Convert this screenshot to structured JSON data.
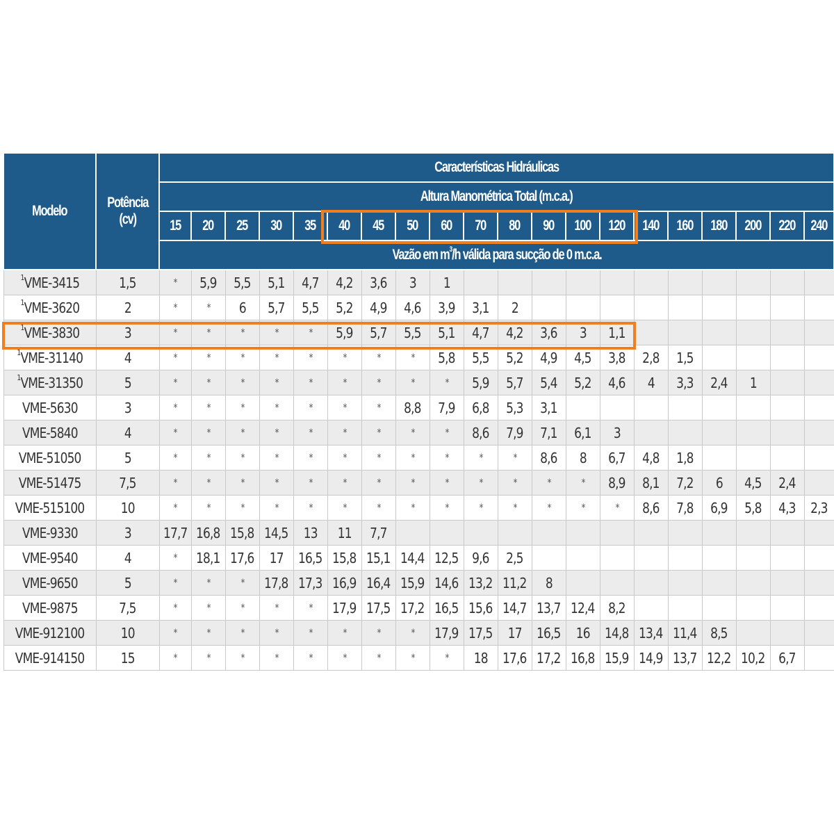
{
  "headers": {
    "modelo": "Modelo",
    "potencia_line1": "Potência",
    "potencia_line2": "(cv)",
    "caracteristicas": "Características Hidráulicas",
    "altura": "Altura Manométrica Total (m.c.a.)",
    "vazao_pre": "Vazão em m",
    "vazao_sup": "3",
    "vazao_post": "/h válida para sucção de 0 m.c.a.",
    "heights": [
      "15",
      "20",
      "25",
      "30",
      "35",
      "40",
      "45",
      "50",
      "60",
      "70",
      "80",
      "90",
      "100",
      "120",
      "140",
      "160",
      "180",
      "200",
      "220",
      "240"
    ]
  },
  "colors": {
    "header_bg": "#1f5b8a",
    "highlight": "#f07f21",
    "row_alt": "#ececec"
  },
  "rows": [
    {
      "mark": "1",
      "model": "VME-3415",
      "power": "1,5",
      "values": [
        "*",
        "5,9",
        "5,5",
        "5,1",
        "4,7",
        "4,2",
        "3,6",
        "3",
        "1",
        "",
        "",
        "",
        "",
        "",
        "",
        "",
        "",
        "",
        "",
        ""
      ]
    },
    {
      "mark": "1",
      "model": "VME-3620",
      "power": "2",
      "values": [
        "*",
        "*",
        "6",
        "5,7",
        "5,5",
        "5,2",
        "4,9",
        "4,6",
        "3,9",
        "3,1",
        "2",
        "",
        "",
        "",
        "",
        "",
        "",
        "",
        "",
        ""
      ]
    },
    {
      "mark": "1",
      "model": "VME-3830",
      "power": "3",
      "values": [
        "*",
        "*",
        "*",
        "*",
        "*",
        "5,9",
        "5,7",
        "5,5",
        "5,1",
        "4,7",
        "4,2",
        "3,6",
        "3",
        "1,1",
        "",
        "",
        "",
        "",
        "",
        ""
      ]
    },
    {
      "mark": "1",
      "model": "VME-31140",
      "power": "4",
      "values": [
        "*",
        "*",
        "*",
        "*",
        "*",
        "*",
        "*",
        "*",
        "5,8",
        "5,5",
        "5,2",
        "4,9",
        "4,5",
        "3,8",
        "2,8",
        "1,5",
        "",
        "",
        "",
        ""
      ]
    },
    {
      "mark": "1",
      "model": "VME-31350",
      "power": "5",
      "values": [
        "*",
        "*",
        "*",
        "*",
        "*",
        "*",
        "*",
        "*",
        "*",
        "5,9",
        "5,7",
        "5,4",
        "5,2",
        "4,6",
        "4",
        "3,3",
        "2,4",
        "1",
        "",
        ""
      ]
    },
    {
      "mark": "",
      "model": "VME-5630",
      "power": "3",
      "values": [
        "*",
        "*",
        "*",
        "*",
        "*",
        "*",
        "*",
        "8,8",
        "7,9",
        "6,8",
        "5,3",
        "3,1",
        "",
        "",
        "",
        "",
        "",
        "",
        "",
        ""
      ]
    },
    {
      "mark": "",
      "model": "VME-5840",
      "power": "4",
      "values": [
        "*",
        "*",
        "*",
        "*",
        "*",
        "*",
        "*",
        "*",
        "*",
        "8,6",
        "7,9",
        "7,1",
        "6,1",
        "3",
        "",
        "",
        "",
        "",
        "",
        ""
      ]
    },
    {
      "mark": "",
      "model": "VME-51050",
      "power": "5",
      "values": [
        "*",
        "*",
        "*",
        "*",
        "*",
        "*",
        "*",
        "*",
        "*",
        "*",
        "*",
        "8,6",
        "8",
        "6,7",
        "4,8",
        "1,8",
        "",
        "",
        "",
        ""
      ]
    },
    {
      "mark": "",
      "model": "VME-51475",
      "power": "7,5",
      "values": [
        "*",
        "*",
        "*",
        "*",
        "*",
        "*",
        "*",
        "*",
        "*",
        "*",
        "*",
        "*",
        "*",
        "8,9",
        "8,1",
        "7,2",
        "6",
        "4,5",
        "2,4",
        ""
      ]
    },
    {
      "mark": "",
      "model": "VME-515100",
      "power": "10",
      "values": [
        "*",
        "*",
        "*",
        "*",
        "*",
        "*",
        "*",
        "*",
        "*",
        "*",
        "*",
        "*",
        "*",
        "*",
        "8,6",
        "7,8",
        "6,9",
        "5,8",
        "4,3",
        "2,3"
      ]
    },
    {
      "mark": "",
      "model": "VME-9330",
      "power": "3",
      "values": [
        "17,7",
        "16,8",
        "15,8",
        "14,5",
        "13",
        "11",
        "7,7",
        "",
        "",
        "",
        "",
        "",
        "",
        "",
        "",
        "",
        "",
        "",
        "",
        ""
      ]
    },
    {
      "mark": "",
      "model": "VME-9540",
      "power": "4",
      "values": [
        "*",
        "18,1",
        "17,6",
        "17",
        "16,5",
        "15,8",
        "15,1",
        "14,4",
        "12,5",
        "9,6",
        "2,5",
        "",
        "",
        "",
        "",
        "",
        "",
        "",
        "",
        ""
      ]
    },
    {
      "mark": "",
      "model": "VME-9650",
      "power": "5",
      "values": [
        "*",
        "*",
        "*",
        "17,8",
        "17,3",
        "16,9",
        "16,4",
        "15,9",
        "14,6",
        "13,2",
        "11,2",
        "8",
        "",
        "",
        "",
        "",
        "",
        "",
        "",
        ""
      ]
    },
    {
      "mark": "",
      "model": "VME-9875",
      "power": "7,5",
      "values": [
        "*",
        "*",
        "*",
        "*",
        "*",
        "17,9",
        "17,5",
        "17,2",
        "16,5",
        "15,6",
        "14,7",
        "13,7",
        "12,4",
        "8,2",
        "",
        "",
        "",
        "",
        "",
        ""
      ]
    },
    {
      "mark": "",
      "model": "VME-912100",
      "power": "10",
      "values": [
        "*",
        "*",
        "*",
        "*",
        "*",
        "*",
        "*",
        "*",
        "17,9",
        "17,5",
        "17",
        "16,5",
        "16",
        "14,8",
        "13,4",
        "11,4",
        "8,5",
        "",
        "",
        ""
      ]
    },
    {
      "mark": "",
      "model": "VME-914150",
      "power": "15",
      "values": [
        "*",
        "*",
        "*",
        "*",
        "*",
        "*",
        "*",
        "*",
        "*",
        "18",
        "17,6",
        "17,2",
        "16,8",
        "15,9",
        "14,9",
        "13,7",
        "12,2",
        "10,2",
        "6,7",
        ""
      ]
    }
  ]
}
